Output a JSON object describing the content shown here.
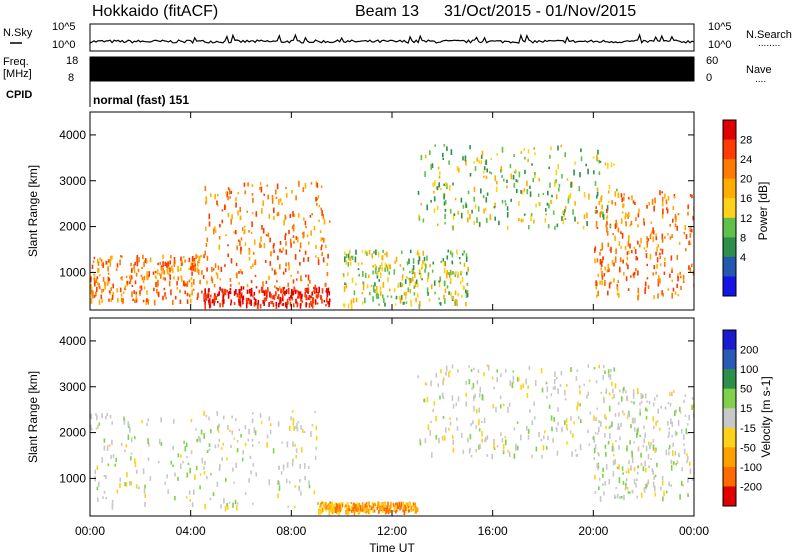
{
  "header": {
    "station": "Hokkaido (fitACF)",
    "beam": "Beam 13",
    "date_range": "31/Oct/2015 - 01/Nov/2015"
  },
  "top_panel": {
    "left_label": "N.Sky",
    "right_label": "N.Search",
    "tick_top": "10^5",
    "tick_bottom": "10^0",
    "dots": "........"
  },
  "freq_panel": {
    "left_label_1": "Freq.",
    "left_label_2": "[MHz]",
    "left_tick_top": "18",
    "left_tick_bottom": "8",
    "right_tick_top": "60",
    "right_tick_bottom": "0",
    "right_label": "Nave",
    "dots": "...."
  },
  "cpid": {
    "label": "CPID",
    "mode": "normal (fast) 151"
  },
  "chart_data": [
    {
      "type": "heatmap",
      "title": "",
      "ylabel": "Slant Range [km]",
      "xlabel": "",
      "ylim": [
        180,
        4500
      ],
      "yticks": [
        "1000",
        "2000",
        "3000",
        "4000"
      ],
      "colorbar": {
        "label": "Power [dB]",
        "ticks": [
          "28",
          "24",
          "20",
          "16",
          "12",
          "8",
          "4"
        ],
        "colors": [
          "#e00000",
          "#ff3b00",
          "#ff7a00",
          "#ffae00",
          "#ffd21a",
          "#5fc04a",
          "#2e8f4a",
          "#2457b0",
          "#1414e6"
        ]
      },
      "regions": [
        {
          "t": [
            0,
            4.5
          ],
          "range": [
            400,
            1400
          ],
          "level": "high"
        },
        {
          "t": [
            4.5,
            9.5
          ],
          "range": [
            300,
            700
          ],
          "level": "very-high"
        },
        {
          "t": [
            4.5,
            9.5
          ],
          "range": [
            700,
            3000
          ],
          "level": "high"
        },
        {
          "t": [
            10,
            15
          ],
          "range": [
            300,
            1500
          ],
          "level": "medium"
        },
        {
          "t": [
            13,
            21
          ],
          "range": [
            2000,
            3800
          ],
          "level": "medium"
        },
        {
          "t": [
            20,
            24
          ],
          "range": [
            500,
            2800
          ],
          "level": "high"
        }
      ]
    },
    {
      "type": "heatmap",
      "title": "",
      "ylabel": "Slant Range [km]",
      "xlabel": "Time UT",
      "ylim": [
        180,
        4500
      ],
      "yticks": [
        "1000",
        "2000",
        "3000",
        "4000"
      ],
      "xticks": [
        "00:00",
        "04:00",
        "08:00",
        "12:00",
        "16:00",
        "20:00",
        "00:00"
      ],
      "colorbar": {
        "label": "Velocity [m s-1]",
        "ticks": [
          "200",
          "100",
          "50",
          "15",
          "-15",
          "-50",
          "-100",
          "-200"
        ],
        "colors": [
          "#1a1ad0",
          "#2a5ab8",
          "#2e8f4a",
          "#7fd04a",
          "#c8c8c8",
          "#ffd21a",
          "#ffa000",
          "#ff6a00",
          "#e00000"
        ]
      },
      "regions": [
        {
          "t": [
            0,
            9
          ],
          "range": [
            400,
            2500
          ],
          "level": "near-zero"
        },
        {
          "t": [
            9,
            13
          ],
          "range": [
            300,
            500
          ],
          "level": "negative"
        },
        {
          "t": [
            13,
            21
          ],
          "range": [
            1500,
            3500
          ],
          "level": "near-zero"
        },
        {
          "t": [
            20,
            24
          ],
          "range": [
            600,
            3000
          ],
          "level": "near-zero"
        }
      ]
    }
  ]
}
